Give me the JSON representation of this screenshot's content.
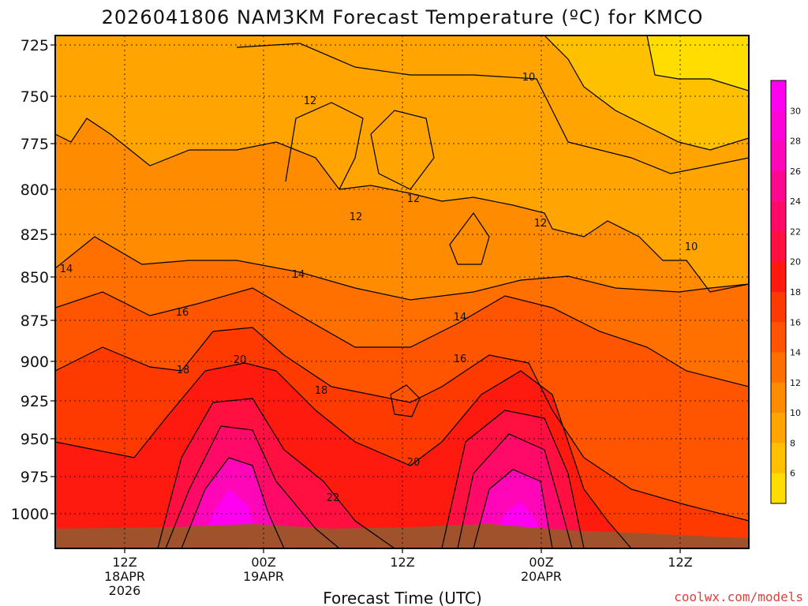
{
  "chart_data": {
    "type": "heatmap",
    "title": "2026041806 NAM3KM Forecast Temperature (ºC) for KMCO",
    "xlabel": "Forecast Time (UTC)",
    "ylabel": "",
    "credit": "coolwx.com/models",
    "y_axis": {
      "ticks": [
        "725",
        "750",
        "775",
        "800",
        "825",
        "850",
        "875",
        "900",
        "925",
        "950",
        "975",
        "1000"
      ]
    },
    "x_axis": {
      "ticks": [
        {
          "lines": [
            "12Z",
            "18APR",
            "2026"
          ]
        },
        {
          "lines": [
            "00Z",
            "19APR"
          ]
        },
        {
          "lines": [
            "12Z"
          ]
        },
        {
          "lines": [
            "00Z",
            "20APR"
          ]
        },
        {
          "lines": [
            "12Z"
          ]
        }
      ]
    },
    "colorbar": {
      "labels": [
        "6",
        "8",
        "10",
        "12",
        "14",
        "16",
        "18",
        "20",
        "22",
        "24",
        "26",
        "28",
        "30"
      ],
      "colors": [
        "#ffdd00",
        "#ffc000",
        "#ffa400",
        "#ff8c00",
        "#ff7000",
        "#ff5400",
        "#ff3a00",
        "#ff1a10",
        "#ff1040",
        "#ff0a68",
        "#ff0890",
        "#ff06b8",
        "#ff04d6",
        "#ff00f0"
      ]
    },
    "contour_labels": [
      "10",
      "10",
      "12",
      "12",
      "12",
      "12",
      "14",
      "14",
      "14",
      "16",
      "16",
      "18",
      "18",
      "20",
      "20",
      "22"
    ]
  }
}
